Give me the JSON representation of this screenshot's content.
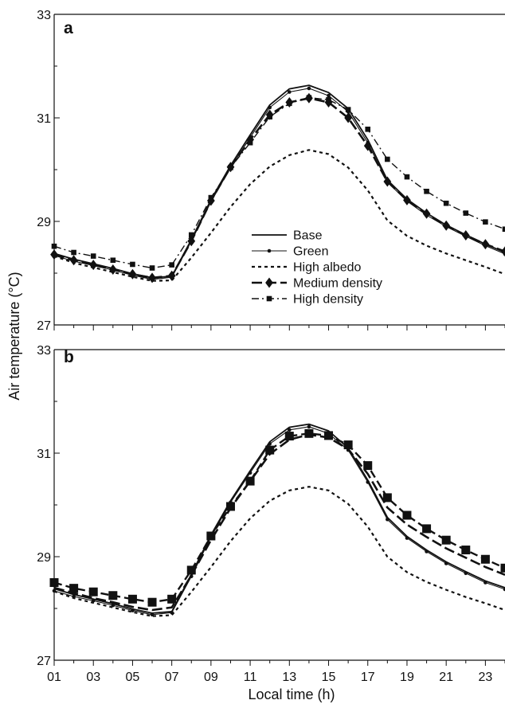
{
  "chart_data": [
    {
      "type": "line",
      "panel_label": "a",
      "ylabel": "Air temperature (°C)",
      "xlabel": "",
      "ylim": [
        27,
        33
      ],
      "xlim": [
        1,
        24
      ],
      "yticks": [
        27,
        29,
        31,
        33
      ],
      "ytick_labels": [
        "27",
        "29",
        "31",
        "33"
      ],
      "xticks": [
        1,
        3,
        5,
        7,
        9,
        11,
        13,
        15,
        17,
        19,
        21,
        23
      ],
      "xtick_labels": [],
      "legend_position": "center-right",
      "x": [
        1,
        2,
        3,
        4,
        5,
        6,
        7,
        8,
        9,
        10,
        11,
        12,
        13,
        14,
        15,
        16,
        17,
        18,
        19,
        20,
        21,
        22,
        23,
        24
      ],
      "series": [
        {
          "name": "Base",
          "style": "solid",
          "marker": "none",
          "values": [
            28.38,
            28.27,
            28.18,
            28.09,
            27.99,
            27.91,
            27.94,
            28.65,
            29.42,
            30.08,
            30.67,
            31.25,
            31.56,
            31.63,
            31.49,
            31.18,
            30.58,
            29.8,
            29.43,
            29.16,
            28.93,
            28.74,
            28.56,
            28.4
          ]
        },
        {
          "name": "Green",
          "style": "solid-thin",
          "marker": "small-circle",
          "values": [
            28.34,
            28.23,
            28.15,
            28.06,
            27.96,
            27.88,
            27.92,
            28.62,
            29.38,
            30.04,
            30.62,
            31.2,
            31.5,
            31.57,
            31.43,
            31.12,
            30.52,
            29.76,
            29.39,
            29.12,
            28.9,
            28.71,
            28.53,
            28.37
          ]
        },
        {
          "name": "High albedo",
          "style": "dotted",
          "marker": "none",
          "values": [
            28.33,
            28.2,
            28.11,
            28.02,
            27.93,
            27.85,
            27.86,
            28.3,
            28.78,
            29.28,
            29.72,
            30.06,
            30.28,
            30.38,
            30.3,
            30.04,
            29.6,
            29.02,
            28.72,
            28.53,
            28.38,
            28.25,
            28.12,
            27.98
          ]
        },
        {
          "name": "Medium density",
          "style": "long-dash",
          "marker": "diamond",
          "values": [
            28.36,
            28.25,
            28.16,
            28.07,
            27.98,
            27.91,
            27.95,
            28.62,
            29.4,
            30.05,
            30.58,
            31.06,
            31.3,
            31.38,
            31.3,
            31.0,
            30.46,
            29.77,
            29.41,
            29.15,
            28.92,
            28.73,
            28.56,
            28.42
          ]
        },
        {
          "name": "High density",
          "style": "dash-dot",
          "marker": "square",
          "values": [
            28.52,
            28.4,
            28.33,
            28.25,
            28.17,
            28.1,
            28.16,
            28.74,
            29.46,
            30.04,
            30.52,
            31.02,
            31.28,
            31.39,
            31.35,
            31.16,
            30.78,
            30.2,
            29.86,
            29.58,
            29.35,
            29.16,
            28.99,
            28.85
          ]
        }
      ]
    },
    {
      "type": "line",
      "panel_label": "b",
      "ylabel": "",
      "xlabel": "Local time (h)",
      "ylim": [
        27,
        33
      ],
      "xlim": [
        1,
        24
      ],
      "yticks": [
        27,
        29,
        31,
        33
      ],
      "ytick_labels": [
        "27",
        "29",
        "31",
        "33"
      ],
      "xticks": [
        1,
        3,
        5,
        7,
        9,
        11,
        13,
        15,
        17,
        19,
        21,
        23
      ],
      "xtick_labels": [
        "01",
        "03",
        "05",
        "07",
        "09",
        "11",
        "13",
        "15",
        "17",
        "19",
        "21",
        "23"
      ],
      "x": [
        1,
        2,
        3,
        4,
        5,
        6,
        7,
        8,
        9,
        10,
        11,
        12,
        13,
        14,
        15,
        16,
        17,
        18,
        19,
        20,
        21,
        22,
        23,
        24
      ],
      "series": [
        {
          "style": "solid",
          "marker": "none",
          "values": [
            28.38,
            28.27,
            28.18,
            28.09,
            27.99,
            27.91,
            27.94,
            28.66,
            29.42,
            30.08,
            30.66,
            31.22,
            31.5,
            31.56,
            31.43,
            31.1,
            30.48,
            29.76,
            29.39,
            29.13,
            28.9,
            28.71,
            28.53,
            28.4
          ]
        },
        {
          "style": "solid-thin",
          "marker": "small-circle",
          "values": [
            28.34,
            28.23,
            28.15,
            28.06,
            27.96,
            27.88,
            27.92,
            28.62,
            29.38,
            30.05,
            30.62,
            31.18,
            31.45,
            31.51,
            31.38,
            31.06,
            30.44,
            29.72,
            29.36,
            29.1,
            28.87,
            28.68,
            28.5,
            28.37
          ]
        },
        {
          "style": "dotted",
          "marker": "none",
          "values": [
            28.33,
            28.2,
            28.11,
            28.02,
            27.93,
            27.85,
            27.87,
            28.32,
            28.8,
            29.3,
            29.74,
            30.08,
            30.28,
            30.35,
            30.28,
            30.02,
            29.58,
            29.0,
            28.7,
            28.51,
            28.36,
            28.22,
            28.1,
            27.97
          ]
        },
        {
          "style": "long-dash",
          "marker": "none",
          "values": [
            28.4,
            28.3,
            28.2,
            28.12,
            28.03,
            27.97,
            28.02,
            28.64,
            29.32,
            29.94,
            30.46,
            30.98,
            31.26,
            31.36,
            31.3,
            31.08,
            30.6,
            29.95,
            29.62,
            29.38,
            29.16,
            28.98,
            28.8,
            28.65
          ]
        },
        {
          "style": "dashed-bold",
          "marker": "large-square",
          "values": [
            28.5,
            28.39,
            28.32,
            28.25,
            28.18,
            28.12,
            28.18,
            28.74,
            29.4,
            29.97,
            30.46,
            31.06,
            31.33,
            31.38,
            31.34,
            31.16,
            30.76,
            30.14,
            29.8,
            29.54,
            29.32,
            29.13,
            28.95,
            28.78
          ]
        }
      ]
    }
  ]
}
